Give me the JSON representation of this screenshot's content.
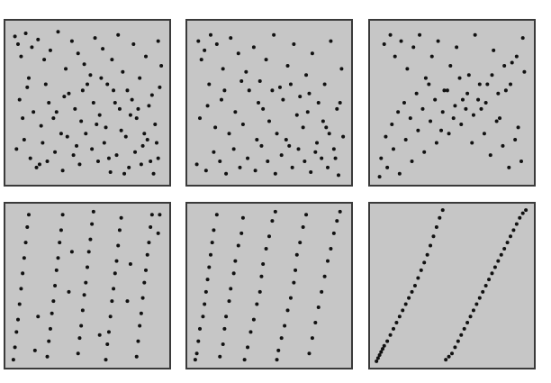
{
  "chart_data": [
    {
      "type": "scatter",
      "row": "top",
      "col": "left",
      "xlim": [
        0,
        1
      ],
      "ylim": [
        0,
        1
      ],
      "grid": false,
      "series": [
        {
          "x": [
            0.03,
            0.05,
            0.07,
            0.1,
            0.14,
            0.18,
            0.22,
            0.26,
            0.31,
            0.36,
            0.4,
            0.44,
            0.48,
            0.52,
            0.55,
            0.6,
            0.63,
            0.66,
            0.7,
            0.73,
            0.76,
            0.8,
            0.84,
            0.88,
            0.92,
            0.96,
            0.98,
            0.06,
            0.11,
            0.15,
            0.2,
            0.25,
            0.28,
            0.33,
            0.38,
            0.42,
            0.46,
            0.5,
            0.54,
            0.58,
            0.62,
            0.67,
            0.71,
            0.75,
            0.79,
            0.82,
            0.86,
            0.9,
            0.94,
            0.97,
            0.04,
            0.09,
            0.13,
            0.17,
            0.21,
            0.24,
            0.29,
            0.34,
            0.37,
            0.41,
            0.45,
            0.49,
            0.53,
            0.57,
            0.61,
            0.65,
            0.69,
            0.72,
            0.77,
            0.81,
            0.85,
            0.89,
            0.93,
            0.96,
            0.12,
            0.23,
            0.35,
            0.47,
            0.59,
            0.68,
            0.78,
            0.87,
            0.95,
            0.08,
            0.19,
            0.3,
            0.43,
            0.56,
            0.64,
            0.74,
            0.83,
            0.91
          ],
          "y": [
            0.93,
            0.88,
            0.8,
            0.95,
            0.86,
            0.91,
            0.78,
            0.84,
            0.96,
            0.72,
            0.9,
            0.82,
            0.75,
            0.68,
            0.92,
            0.85,
            0.62,
            0.78,
            0.94,
            0.7,
            0.58,
            0.88,
            0.66,
            0.8,
            0.55,
            0.9,
            0.74,
            0.52,
            0.6,
            0.44,
            0.35,
            0.5,
            0.4,
            0.3,
            0.56,
            0.46,
            0.38,
            0.62,
            0.5,
            0.42,
            0.34,
            0.58,
            0.46,
            0.28,
            0.52,
            0.4,
            0.22,
            0.48,
            0.36,
            0.6,
            0.2,
            0.26,
            0.14,
            0.08,
            0.24,
            0.12,
            0.18,
            0.06,
            0.28,
            0.16,
            0.1,
            0.3,
            0.2,
            0.12,
            0.24,
            0.05,
            0.16,
            0.32,
            0.08,
            0.18,
            0.1,
            0.26,
            0.04,
            0.14,
            0.66,
            0.62,
            0.54,
            0.58,
            0.66,
            0.5,
            0.42,
            0.3,
            0.24,
            0.4,
            0.1,
            0.44,
            0.22,
            0.36,
            0.14,
            0.04,
            0.46,
            0.12
          ]
        }
      ]
    },
    {
      "type": "scatter",
      "row": "top",
      "col": "middle",
      "xlim": [
        0,
        1
      ],
      "ylim": [
        0,
        1
      ],
      "grid": false,
      "series": [
        {
          "x": [
            0.04,
            0.08,
            0.12,
            0.06,
            0.16,
            0.2,
            0.25,
            0.3,
            0.35,
            0.4,
            0.44,
            0.48,
            0.53,
            0.57,
            0.62,
            0.66,
            0.7,
            0.74,
            0.78,
            0.82,
            0.86,
            0.9,
            0.94,
            0.97,
            0.05,
            0.1,
            0.15,
            0.19,
            0.24,
            0.28,
            0.33,
            0.37,
            0.42,
            0.46,
            0.5,
            0.55,
            0.59,
            0.63,
            0.68,
            0.72,
            0.76,
            0.8,
            0.85,
            0.89,
            0.93,
            0.96,
            0.03,
            0.09,
            0.14,
            0.18,
            0.22,
            0.27,
            0.31,
            0.36,
            0.41,
            0.45,
            0.49,
            0.54,
            0.58,
            0.61,
            0.65,
            0.69,
            0.73,
            0.77,
            0.81,
            0.84,
            0.88,
            0.92,
            0.95,
            0.11,
            0.21,
            0.32,
            0.43,
            0.52,
            0.64,
            0.75,
            0.87,
            0.98
          ],
          "y": [
            0.9,
            0.84,
            0.94,
            0.78,
            0.88,
            0.72,
            0.92,
            0.82,
            0.7,
            0.86,
            0.64,
            0.78,
            0.94,
            0.6,
            0.74,
            0.88,
            0.54,
            0.68,
            0.82,
            0.5,
            0.62,
            0.9,
            0.46,
            0.72,
            0.4,
            0.48,
            0.34,
            0.52,
            0.3,
            0.44,
            0.36,
            0.58,
            0.26,
            0.46,
            0.38,
            0.3,
            0.52,
            0.22,
            0.42,
            0.34,
            0.56,
            0.18,
            0.38,
            0.3,
            0.14,
            0.5,
            0.1,
            0.06,
            0.18,
            0.12,
            0.04,
            0.2,
            0.08,
            0.14,
            0.06,
            0.22,
            0.12,
            0.04,
            0.16,
            0.26,
            0.08,
            0.2,
            0.12,
            0.05,
            0.24,
            0.14,
            0.08,
            0.2,
            0.03,
            0.62,
            0.58,
            0.64,
            0.5,
            0.58,
            0.62,
            0.44,
            0.34,
            0.28
          ]
        }
      ]
    },
    {
      "type": "scatter",
      "row": "top",
      "col": "right",
      "xlim": [
        0,
        1
      ],
      "ylim": [
        0,
        1
      ],
      "grid": false,
      "series": [
        {
          "x": [
            0.06,
            0.1,
            0.13,
            0.17,
            0.21,
            0.25,
            0.29,
            0.33,
            0.37,
            0.41,
            0.45,
            0.49,
            0.53,
            0.57,
            0.61,
            0.65,
            0.69,
            0.73,
            0.77,
            0.81,
            0.85,
            0.89,
            0.93,
            0.96,
            0.04,
            0.08,
            0.12,
            0.16,
            0.2,
            0.24,
            0.28,
            0.32,
            0.36,
            0.4,
            0.44,
            0.48,
            0.52,
            0.56,
            0.6,
            0.64,
            0.68,
            0.72,
            0.76,
            0.8,
            0.84,
            0.88,
            0.92,
            0.97,
            0.03,
            0.07,
            0.11,
            0.15,
            0.19,
            0.23,
            0.27,
            0.31,
            0.35,
            0.39,
            0.43,
            0.47,
            0.51,
            0.55,
            0.59,
            0.63,
            0.67,
            0.71,
            0.75,
            0.79,
            0.83,
            0.87,
            0.91,
            0.95
          ],
          "y": [
            0.88,
            0.94,
            0.8,
            0.9,
            0.72,
            0.86,
            0.94,
            0.66,
            0.8,
            0.9,
            0.58,
            0.74,
            0.86,
            0.52,
            0.68,
            0.94,
            0.46,
            0.62,
            0.84,
            0.4,
            0.58,
            0.76,
            0.34,
            0.92,
            0.14,
            0.08,
            0.2,
            0.04,
            0.26,
            0.12,
            0.32,
            0.18,
            0.38,
            0.24,
            0.44,
            0.3,
            0.48,
            0.36,
            0.56,
            0.42,
            0.62,
            0.5,
            0.68,
            0.56,
            0.74,
            0.62,
            0.8,
            0.7,
            0.02,
            0.28,
            0.36,
            0.44,
            0.5,
            0.4,
            0.56,
            0.46,
            0.62,
            0.52,
            0.32,
            0.58,
            0.4,
            0.66,
            0.46,
            0.24,
            0.52,
            0.3,
            0.16,
            0.38,
            0.22,
            0.08,
            0.26,
            0.12
          ]
        }
      ]
    },
    {
      "type": "scatter",
      "row": "bottom",
      "col": "left",
      "xlim": [
        0,
        1
      ],
      "ylim": [
        0,
        1
      ],
      "grid": false,
      "series": [
        {
          "x": [
            0.02,
            0.03,
            0.04,
            0.05,
            0.06,
            0.07,
            0.08,
            0.09,
            0.1,
            0.11,
            0.12,
            0.24,
            0.25,
            0.26,
            0.27,
            0.28,
            0.29,
            0.3,
            0.31,
            0.32,
            0.33,
            0.34,
            0.44,
            0.45,
            0.46,
            0.47,
            0.48,
            0.49,
            0.5,
            0.51,
            0.52,
            0.53,
            0.54,
            0.62,
            0.63,
            0.64,
            0.65,
            0.66,
            0.67,
            0.68,
            0.69,
            0.7,
            0.71,
            0.72,
            0.82,
            0.83,
            0.84,
            0.85,
            0.86,
            0.87,
            0.88,
            0.89,
            0.9,
            0.91,
            0.92,
            0.16,
            0.18,
            0.38,
            0.4,
            0.58,
            0.76,
            0.78,
            0.96,
            0.97
          ],
          "y": [
            0.02,
            0.1,
            0.2,
            0.28,
            0.38,
            0.48,
            0.58,
            0.68,
            0.78,
            0.88,
            0.96,
            0.04,
            0.14,
            0.22,
            0.32,
            0.4,
            0.5,
            0.6,
            0.68,
            0.78,
            0.86,
            0.96,
            0.06,
            0.16,
            0.24,
            0.34,
            0.44,
            0.52,
            0.62,
            0.72,
            0.8,
            0.9,
            0.98,
            0.02,
            0.12,
            0.2,
            0.3,
            0.4,
            0.48,
            0.58,
            0.66,
            0.76,
            0.86,
            0.94,
            0.04,
            0.14,
            0.24,
            0.32,
            0.42,
            0.52,
            0.6,
            0.7,
            0.78,
            0.88,
            0.96,
            0.08,
            0.3,
            0.46,
            0.72,
            0.18,
            0.4,
            0.64,
            0.84,
            0.96
          ]
        }
      ]
    },
    {
      "type": "scatter",
      "row": "bottom",
      "col": "middle",
      "xlim": [
        0,
        1
      ],
      "ylim": [
        0,
        1
      ],
      "grid": false,
      "series": [
        {
          "x": [
            0.02,
            0.03,
            0.04,
            0.05,
            0.07,
            0.08,
            0.09,
            0.1,
            0.11,
            0.12,
            0.13,
            0.14,
            0.16,
            0.18,
            0.2,
            0.21,
            0.22,
            0.24,
            0.25,
            0.27,
            0.28,
            0.3,
            0.32,
            0.33,
            0.34,
            0.36,
            0.38,
            0.4,
            0.42,
            0.44,
            0.45,
            0.46,
            0.48,
            0.5,
            0.52,
            0.54,
            0.55,
            0.56,
            0.58,
            0.6,
            0.62,
            0.64,
            0.66,
            0.67,
            0.68,
            0.7,
            0.72,
            0.74,
            0.76,
            0.78,
            0.8,
            0.82,
            0.84,
            0.86,
            0.88,
            0.9,
            0.92,
            0.94,
            0.96
          ],
          "y": [
            0.02,
            0.06,
            0.14,
            0.22,
            0.3,
            0.38,
            0.46,
            0.54,
            0.62,
            0.7,
            0.78,
            0.86,
            0.96,
            0.04,
            0.12,
            0.22,
            0.3,
            0.4,
            0.48,
            0.58,
            0.66,
            0.76,
            0.84,
            0.94,
            0.02,
            0.1,
            0.2,
            0.28,
            0.38,
            0.46,
            0.56,
            0.64,
            0.74,
            0.82,
            0.92,
            0.98,
            0.02,
            0.08,
            0.16,
            0.24,
            0.34,
            0.42,
            0.52,
            0.6,
            0.7,
            0.78,
            0.88,
            0.96,
            0.06,
            0.16,
            0.26,
            0.36,
            0.46,
            0.56,
            0.66,
            0.74,
            0.84,
            0.92,
            0.98
          ]
        }
      ]
    },
    {
      "type": "scatter",
      "row": "bottom",
      "col": "right",
      "xlim": [
        0,
        1
      ],
      "ylim": [
        0,
        1
      ],
      "grid": false,
      "series": [
        {
          "x": [
            0.01,
            0.02,
            0.03,
            0.04,
            0.05,
            0.06,
            0.08,
            0.1,
            0.12,
            0.14,
            0.16,
            0.18,
            0.2,
            0.22,
            0.24,
            0.26,
            0.28,
            0.3,
            0.32,
            0.34,
            0.36,
            0.38,
            0.4,
            0.42,
            0.44,
            0.46,
            0.48,
            0.5,
            0.52,
            0.54,
            0.56,
            0.58,
            0.6,
            0.62,
            0.64,
            0.66,
            0.68,
            0.7,
            0.72,
            0.74,
            0.76,
            0.78,
            0.8,
            0.82,
            0.84,
            0.86,
            0.88,
            0.9,
            0.92,
            0.94,
            0.96,
            0.98
          ],
          "y": [
            0.01,
            0.03,
            0.05,
            0.07,
            0.09,
            0.11,
            0.14,
            0.18,
            0.22,
            0.26,
            0.3,
            0.34,
            0.38,
            0.42,
            0.46,
            0.5,
            0.55,
            0.6,
            0.65,
            0.7,
            0.76,
            0.82,
            0.88,
            0.94,
            0.99,
            0.02,
            0.04,
            0.06,
            0.1,
            0.14,
            0.18,
            0.22,
            0.26,
            0.3,
            0.34,
            0.38,
            0.42,
            0.46,
            0.5,
            0.54,
            0.58,
            0.62,
            0.66,
            0.7,
            0.74,
            0.78,
            0.82,
            0.86,
            0.9,
            0.94,
            0.97,
            0.99
          ]
        }
      ]
    }
  ]
}
